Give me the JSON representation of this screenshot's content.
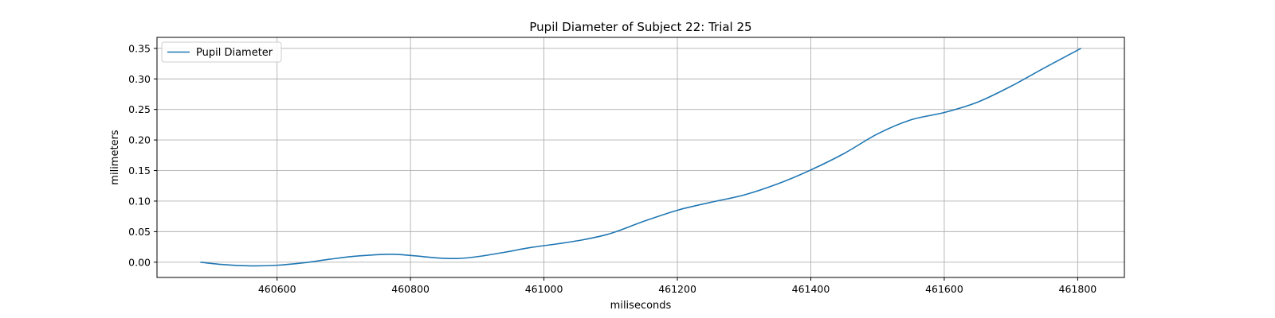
{
  "chart_data": {
    "type": "line",
    "title": "Pupil Diameter of Subject 22: Trial 25",
    "xlabel": "miliseconds",
    "ylabel": "milimeters",
    "xlim": [
      460420,
      461870
    ],
    "ylim": [
      -0.025,
      0.368
    ],
    "xticks": [
      460600,
      460800,
      461000,
      461200,
      461400,
      461600,
      461800
    ],
    "yticks": [
      0.0,
      0.05,
      0.1,
      0.15,
      0.2,
      0.25,
      0.3,
      0.35
    ],
    "xtick_labels": [
      "460600",
      "460800",
      "461000",
      "461200",
      "461400",
      "461600",
      "461800"
    ],
    "ytick_labels": [
      "0.00",
      "0.05",
      "0.10",
      "0.15",
      "0.20",
      "0.25",
      "0.30",
      "0.35"
    ],
    "grid": true,
    "legend_placement": "top-left",
    "series": [
      {
        "name": "Pupil Diameter",
        "color": "#1f77b4",
        "x": [
          460485,
          460520,
          460560,
          460600,
          460640,
          460680,
          460720,
          460770,
          460800,
          460840,
          460870,
          460900,
          460940,
          460980,
          461020,
          461060,
          461100,
          461150,
          461200,
          461250,
          461300,
          461350,
          461400,
          461450,
          461500,
          461550,
          461600,
          461650,
          461700,
          461750,
          461805
        ],
        "y": [
          0.0,
          -0.004,
          -0.006,
          -0.005,
          -0.001,
          0.005,
          0.01,
          0.013,
          0.011,
          0.007,
          0.006,
          0.009,
          0.016,
          0.024,
          0.03,
          0.037,
          0.047,
          0.067,
          0.085,
          0.098,
          0.11,
          0.128,
          0.151,
          0.178,
          0.21,
          0.233,
          0.245,
          0.262,
          0.288,
          0.318,
          0.35
        ]
      }
    ]
  }
}
